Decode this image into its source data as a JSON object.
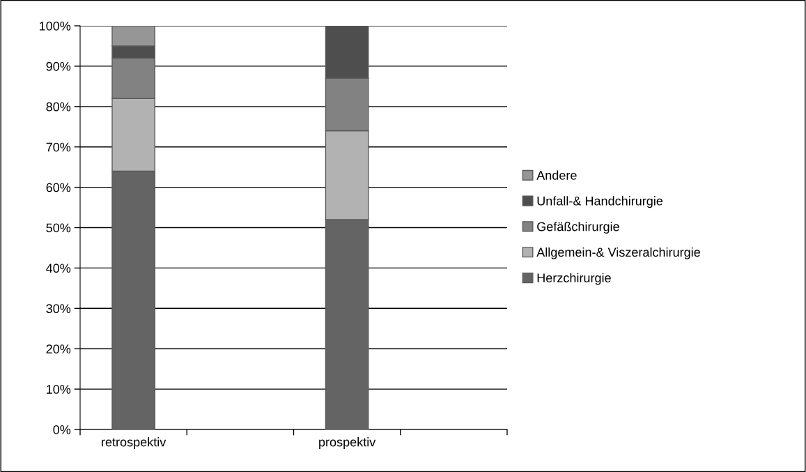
{
  "chart_data": {
    "type": "bar",
    "stacked": true,
    "categories": [
      "retrospektiv",
      null,
      "prospektiv",
      null
    ],
    "series": [
      {
        "name": "Herzchirurgie",
        "color": "#646464",
        "values": [
          64,
          null,
          52,
          null
        ]
      },
      {
        "name": "Allgemein-& Viszeralchirurgie",
        "color": "#b2b2b2",
        "values": [
          18,
          null,
          22,
          null
        ]
      },
      {
        "name": "Gefäßchirurgie",
        "color": "#828282",
        "values": [
          10,
          null,
          13,
          null
        ]
      },
      {
        "name": "Unfall-& Handchirurgie",
        "color": "#4e4e4e",
        "values": [
          3,
          null,
          13,
          null
        ]
      },
      {
        "name": "Andere",
        "color": "#969696",
        "values": [
          5,
          null,
          null,
          null
        ]
      }
    ],
    "ylim": [
      0,
      100
    ],
    "yticks": [
      {
        "value": 0,
        "label": "0%"
      },
      {
        "value": 10,
        "label": "10%"
      },
      {
        "value": 20,
        "label": "20%"
      },
      {
        "value": 30,
        "label": "30%"
      },
      {
        "value": 40,
        "label": "40%"
      },
      {
        "value": 50,
        "label": "50%"
      },
      {
        "value": 60,
        "label": "60%"
      },
      {
        "value": 70,
        "label": "70%"
      },
      {
        "value": 80,
        "label": "80%"
      },
      {
        "value": 90,
        "label": "90%"
      },
      {
        "value": 100,
        "label": "100%"
      }
    ],
    "grid": "y",
    "legend": "right"
  }
}
